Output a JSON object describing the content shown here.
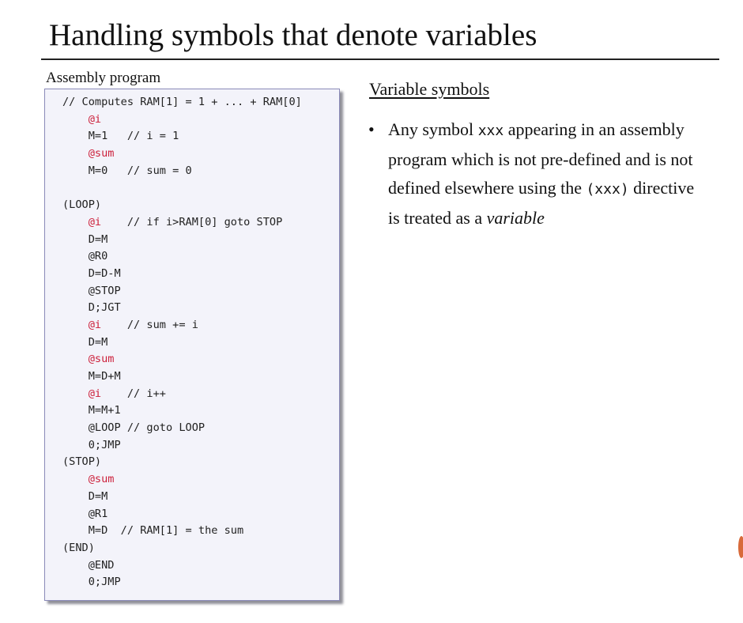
{
  "slide": {
    "title": "Handling symbols that denote variables"
  },
  "code": {
    "caption": "Assembly program",
    "lines": [
      {
        "indent": "",
        "parts": [
          {
            "t": "// Computes RAM[1] = 1 + ... + RAM[0]",
            "c": "comment"
          }
        ]
      },
      {
        "indent": "    ",
        "parts": [
          {
            "t": "@i",
            "c": "sym"
          }
        ]
      },
      {
        "indent": "    ",
        "parts": [
          {
            "t": "M=1",
            "c": "instr"
          },
          {
            "t": "   // i = 1",
            "c": "comment"
          }
        ]
      },
      {
        "indent": "    ",
        "parts": [
          {
            "t": "@sum",
            "c": "sym"
          }
        ]
      },
      {
        "indent": "    ",
        "parts": [
          {
            "t": "M=0",
            "c": "instr"
          },
          {
            "t": "   // sum = 0",
            "c": "comment"
          }
        ]
      },
      {
        "indent": "",
        "parts": []
      },
      {
        "indent": "",
        "parts": [
          {
            "t": "(LOOP)",
            "c": "label"
          }
        ]
      },
      {
        "indent": "    ",
        "parts": [
          {
            "t": "@i",
            "c": "sym"
          },
          {
            "t": "    // if i>RAM[0] goto STOP",
            "c": "comment"
          }
        ]
      },
      {
        "indent": "    ",
        "parts": [
          {
            "t": "D=M",
            "c": "instr"
          }
        ]
      },
      {
        "indent": "    ",
        "parts": [
          {
            "t": "@R0",
            "c": "instr"
          }
        ]
      },
      {
        "indent": "    ",
        "parts": [
          {
            "t": "D=D-M",
            "c": "instr"
          }
        ]
      },
      {
        "indent": "    ",
        "parts": [
          {
            "t": "@STOP",
            "c": "instr"
          }
        ]
      },
      {
        "indent": "    ",
        "parts": [
          {
            "t": "D;JGT",
            "c": "instr"
          }
        ]
      },
      {
        "indent": "    ",
        "parts": [
          {
            "t": "@i",
            "c": "sym"
          },
          {
            "t": "    // sum += i",
            "c": "comment"
          }
        ]
      },
      {
        "indent": "    ",
        "parts": [
          {
            "t": "D=M",
            "c": "instr"
          }
        ]
      },
      {
        "indent": "    ",
        "parts": [
          {
            "t": "@sum",
            "c": "sym"
          }
        ]
      },
      {
        "indent": "    ",
        "parts": [
          {
            "t": "M=D+M",
            "c": "instr"
          }
        ]
      },
      {
        "indent": "    ",
        "parts": [
          {
            "t": "@i",
            "c": "sym"
          },
          {
            "t": "    // i++",
            "c": "comment"
          }
        ]
      },
      {
        "indent": "    ",
        "parts": [
          {
            "t": "M=M+1",
            "c": "instr"
          }
        ]
      },
      {
        "indent": "    ",
        "parts": [
          {
            "t": "@LOOP",
            "c": "instr"
          },
          {
            "t": " // goto LOOP",
            "c": "comment"
          }
        ]
      },
      {
        "indent": "    ",
        "parts": [
          {
            "t": "0;JMP",
            "c": "instr"
          }
        ]
      },
      {
        "indent": "",
        "parts": [
          {
            "t": "(STOP)",
            "c": "label"
          }
        ]
      },
      {
        "indent": "    ",
        "parts": [
          {
            "t": "@sum",
            "c": "sym"
          }
        ]
      },
      {
        "indent": "    ",
        "parts": [
          {
            "t": "D=M",
            "c": "instr"
          }
        ]
      },
      {
        "indent": "    ",
        "parts": [
          {
            "t": "@R1",
            "c": "instr"
          }
        ]
      },
      {
        "indent": "    ",
        "parts": [
          {
            "t": "M=D",
            "c": "instr"
          },
          {
            "t": "  // RAM[1] = the sum",
            "c": "comment"
          }
        ]
      },
      {
        "indent": "",
        "parts": [
          {
            "t": "(END)",
            "c": "label"
          }
        ]
      },
      {
        "indent": "    ",
        "parts": [
          {
            "t": "@END",
            "c": "instr"
          }
        ]
      },
      {
        "indent": "    ",
        "parts": [
          {
            "t": "0;JMP",
            "c": "instr"
          }
        ]
      }
    ]
  },
  "explanation": {
    "heading": "Variable symbols",
    "bullet": {
      "marker": "•",
      "text_1": "Any symbol ",
      "symbol": "xxx",
      "text_2": " appearing in an assembly program which is not pre-defined and is not defined elsewhere using the ",
      "directive": "(xxx)",
      "text_3": " directive is treated as a ",
      "emphasis": "variable"
    }
  },
  "colors": {
    "symbol_highlight": "#cc1f3a",
    "panel_background": "#f3f3fa",
    "panel_border": "#8a8ab8"
  }
}
